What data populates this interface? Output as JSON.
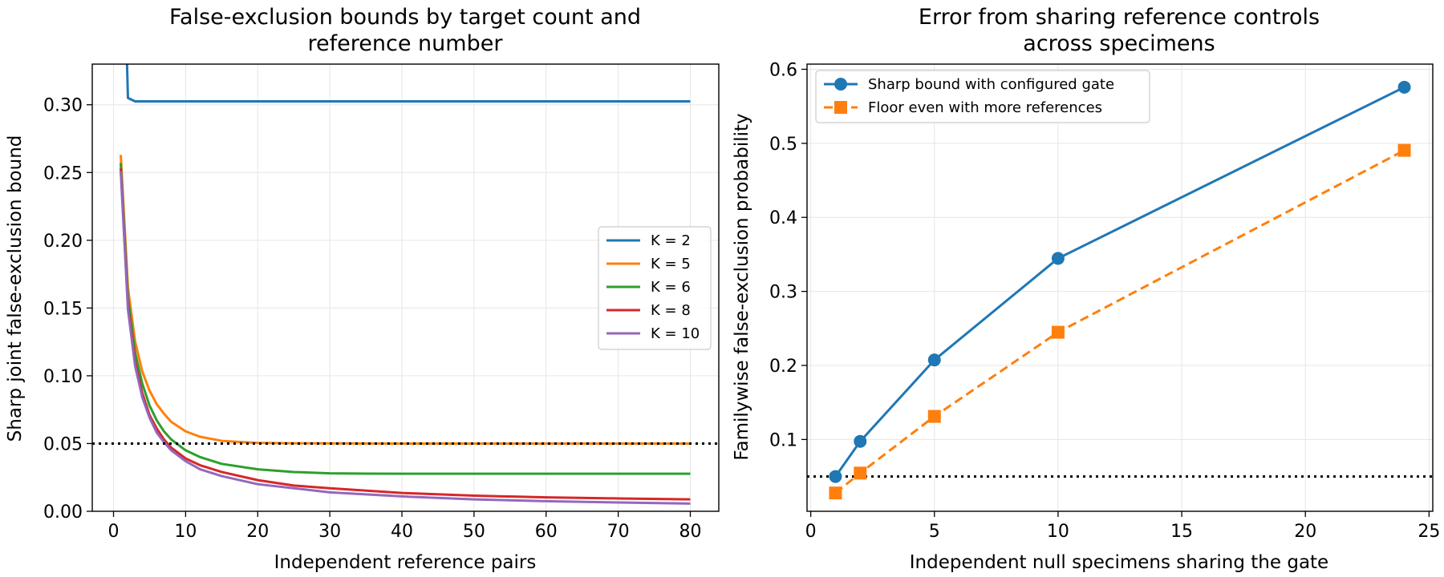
{
  "chart_data": [
    {
      "type": "line",
      "title_lines": [
        "False-exclusion bounds by target count and",
        "reference number"
      ],
      "xlabel": "Independent reference pairs",
      "ylabel": "Sharp joint false-exclusion bound",
      "xlim": [
        -2.95,
        83.95
      ],
      "ylim": [
        0.0,
        0.33
      ],
      "xticks": [
        0,
        10,
        20,
        30,
        40,
        50,
        60,
        70,
        80
      ],
      "xtick_labels": [
        "0",
        "10",
        "20",
        "30",
        "40",
        "50",
        "60",
        "70",
        "80"
      ],
      "yticks": [
        0.0,
        0.05,
        0.1,
        0.15,
        0.2,
        0.25,
        0.3
      ],
      "ytick_labels": [
        "0.00",
        "0.05",
        "0.10",
        "0.15",
        "0.20",
        "0.25",
        "0.30"
      ],
      "grid": true,
      "legend_position": "center-right",
      "reference_line": {
        "y": 0.05,
        "style": "dotted",
        "color": "#000000"
      },
      "series": [
        {
          "name": "K = 2",
          "color": "#1f77b4",
          "x": [
            1,
            2,
            3,
            4,
            5,
            10,
            20,
            40,
            80
          ],
          "y": [
            0.5,
            0.305,
            0.3025,
            0.3025,
            0.3025,
            0.3025,
            0.3025,
            0.3025,
            0.3025
          ]
        },
        {
          "name": "K = 5",
          "color": "#ff7f0e",
          "x": [
            1,
            2,
            3,
            4,
            5,
            6,
            7,
            8,
            10,
            12,
            15,
            18,
            20,
            25,
            30,
            40,
            60,
            80
          ],
          "y": [
            0.263,
            0.165,
            0.125,
            0.103,
            0.089,
            0.079,
            0.072,
            0.066,
            0.059,
            0.055,
            0.052,
            0.051,
            0.0505,
            0.0502,
            0.0501,
            0.05,
            0.05,
            0.05
          ]
        },
        {
          "name": "K = 6",
          "color": "#2ca02c",
          "x": [
            1,
            2,
            3,
            4,
            5,
            6,
            7,
            8,
            10,
            12,
            15,
            20,
            25,
            30,
            35,
            40,
            60,
            80
          ],
          "y": [
            0.257,
            0.158,
            0.117,
            0.094,
            0.078,
            0.067,
            0.059,
            0.053,
            0.045,
            0.04,
            0.035,
            0.031,
            0.029,
            0.028,
            0.0278,
            0.0277,
            0.0277,
            0.0277
          ]
        },
        {
          "name": "K = 8",
          "color": "#d62728",
          "x": [
            1,
            2,
            3,
            4,
            5,
            6,
            7,
            8,
            10,
            12,
            15,
            20,
            25,
            30,
            40,
            50,
            60,
            70,
            80
          ],
          "y": [
            0.253,
            0.152,
            0.11,
            0.087,
            0.071,
            0.061,
            0.053,
            0.047,
            0.039,
            0.034,
            0.029,
            0.023,
            0.019,
            0.017,
            0.0135,
            0.0115,
            0.0103,
            0.0095,
            0.0088
          ]
        },
        {
          "name": "K = 10",
          "color": "#9467bd",
          "x": [
            1,
            2,
            3,
            4,
            5,
            6,
            7,
            8,
            10,
            12,
            15,
            20,
            25,
            30,
            40,
            50,
            60,
            70,
            80
          ],
          "y": [
            0.251,
            0.149,
            0.107,
            0.084,
            0.069,
            0.058,
            0.051,
            0.045,
            0.037,
            0.031,
            0.026,
            0.02,
            0.017,
            0.014,
            0.011,
            0.0088,
            0.0075,
            0.0065,
            0.0057
          ]
        }
      ]
    },
    {
      "type": "line",
      "title_lines": [
        "Error from sharing reference controls",
        "across specimens"
      ],
      "xlabel": "Independent null specimens sharing the gate",
      "ylabel": "Familywise false-exclusion probability",
      "xlim": [
        -0.15,
        25.15
      ],
      "ylim": [
        0.003,
        0.607
      ],
      "xticks": [
        0,
        5,
        10,
        15,
        20,
        25
      ],
      "xtick_labels": [
        "0",
        "5",
        "10",
        "15",
        "20",
        "25"
      ],
      "yticks": [
        0.1,
        0.2,
        0.3,
        0.4,
        0.5,
        0.6
      ],
      "ytick_labels": [
        "0.1",
        "0.2",
        "0.3",
        "0.4",
        "0.5",
        "0.6"
      ],
      "grid": true,
      "legend_position": "upper left",
      "reference_line": {
        "y": 0.05,
        "style": "dotted",
        "color": "#000000"
      },
      "series": [
        {
          "name": "Sharp bound with configured gate",
          "color": "#1f77b4",
          "marker": "circle",
          "linestyle": "solid",
          "x": [
            1,
            2,
            5,
            10,
            24
          ],
          "y": [
            0.05,
            0.0975,
            0.2074,
            0.3446,
            0.5758
          ]
        },
        {
          "name": "Floor even with more references",
          "color": "#ff7f0e",
          "marker": "square",
          "linestyle": "dashed",
          "x": [
            1,
            2,
            5,
            10,
            24
          ],
          "y": [
            0.0277,
            0.0546,
            0.1312,
            0.2448,
            0.4905
          ]
        }
      ]
    }
  ]
}
